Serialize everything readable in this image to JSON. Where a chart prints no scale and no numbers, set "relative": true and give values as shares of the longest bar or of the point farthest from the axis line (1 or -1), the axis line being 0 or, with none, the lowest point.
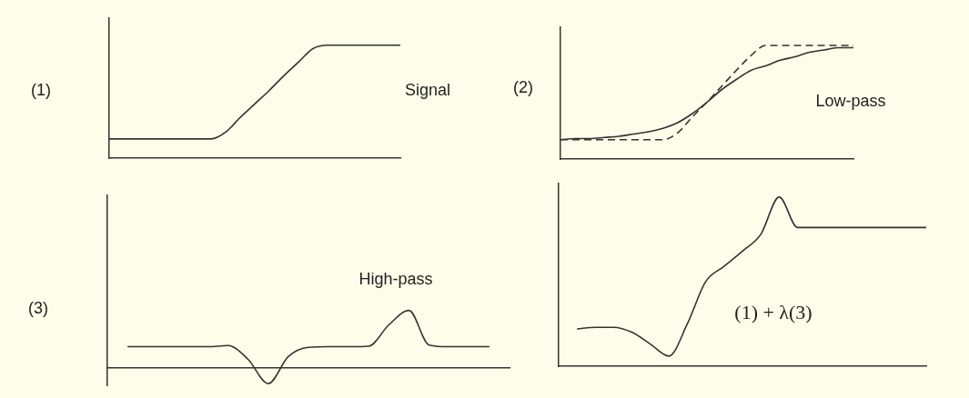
{
  "chart_data": [
    {
      "type": "line",
      "title": "(1)",
      "annotations": [
        "Signal"
      ],
      "relative": true,
      "categories": [
        null,
        null,
        null,
        null,
        null,
        null,
        null,
        null,
        null,
        null,
        null,
        null,
        null,
        null,
        null,
        null,
        null,
        null,
        null,
        null,
        null
      ],
      "series": [
        {
          "color": "#333333",
          "values": [
            0.17,
            0.17,
            0.17,
            0.17,
            0.17,
            0.17,
            0.17,
            0.17,
            0.23,
            0.36,
            0.48,
            0.6,
            0.73,
            0.85,
            0.97,
            1,
            1,
            1,
            1,
            1,
            1
          ]
        }
      ]
    },
    {
      "type": "line",
      "title": "(2)",
      "annotations": [
        "Low-pass"
      ],
      "relative": true,
      "categories": [
        null,
        null,
        null,
        null,
        null,
        null,
        null,
        null,
        null,
        null,
        null,
        null,
        null,
        null,
        null,
        null,
        null,
        null,
        null,
        null,
        null
      ],
      "series": [
        {
          "color": "#333333",
          "line_style": "solid",
          "values": [
            0.17,
            0.18,
            0.18,
            0.19,
            0.2,
            0.22,
            0.24,
            0.27,
            0.32,
            0.4,
            0.5,
            0.61,
            0.7,
            0.78,
            0.82,
            0.87,
            0.9,
            0.94,
            0.96,
            0.98,
            0.98
          ]
        },
        {
          "color": "#333333",
          "line_style": "dashed",
          "values": [
            0.17,
            0.17,
            0.17,
            0.17,
            0.17,
            0.17,
            0.17,
            0.17,
            0.23,
            0.37,
            0.5,
            0.64,
            0.78,
            0.91,
            1,
            1,
            1,
            1,
            1,
            1,
            1
          ]
        }
      ]
    },
    {
      "type": "line",
      "title": "(3)",
      "annotations": [
        "High-pass"
      ],
      "relative": true,
      "categories": [
        null,
        null,
        null,
        null,
        null,
        null,
        null,
        null,
        null,
        null,
        null,
        null,
        null,
        null,
        null,
        null,
        null,
        null,
        null,
        null,
        null
      ],
      "series": [
        {
          "color": "#333333",
          "values": [
            null,
            0.37,
            0.37,
            0.37,
            0.37,
            0.37,
            0.39,
            0.15,
            -0.27,
            0.2,
            0.36,
            0.37,
            0.37,
            0.38,
            0.75,
            1,
            0.4,
            0.37,
            0.37,
            0.37,
            null
          ]
        }
      ]
    },
    {
      "type": "line",
      "annotations": [
        "(1) + λ(3)"
      ],
      "relative": true,
      "categories": [
        null,
        null,
        null,
        null,
        null,
        null,
        null,
        null,
        null,
        null,
        null,
        null,
        null,
        null,
        null,
        null,
        null,
        null,
        null,
        null,
        null
      ],
      "series": [
        {
          "color": "#333333",
          "values": [
            null,
            0.22,
            0.23,
            0.23,
            0.2,
            0.13,
            0.06,
            0.25,
            0.5,
            0.59,
            0.68,
            0.78,
            1,
            0.82,
            0.82,
            0.82,
            0.82,
            0.82,
            0.82,
            0.82,
            0.82
          ]
        }
      ]
    }
  ]
}
